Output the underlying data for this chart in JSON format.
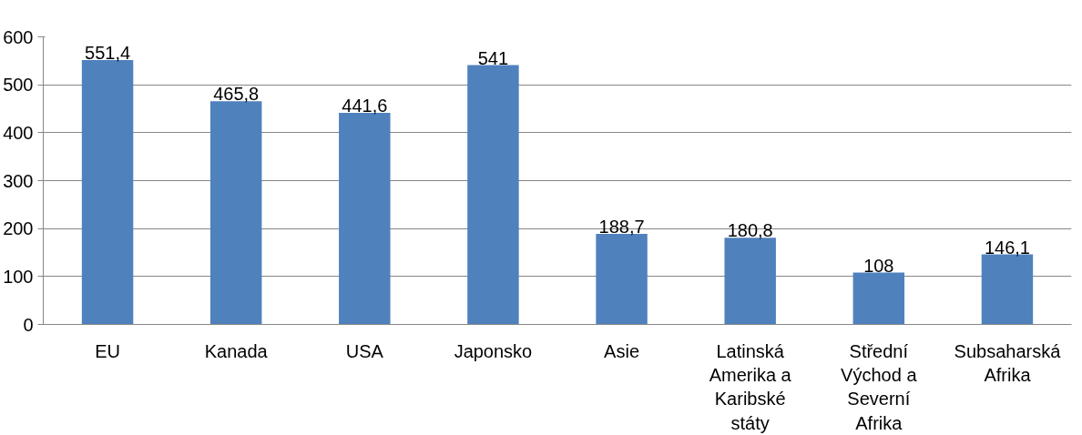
{
  "chart_data": {
    "type": "bar",
    "categories": [
      "EU",
      "Kanada",
      "USA",
      "Japonsko",
      "Asie",
      "Latinská Amerika a Karibské státy",
      "Střední Východ a Severní Afrika",
      "Subsaharská Afrika"
    ],
    "values": [
      551.4,
      465.8,
      441.6,
      541,
      188.7,
      180.8,
      108,
      146.1
    ],
    "value_labels": [
      "551,4",
      "465,8",
      "441,6",
      "541",
      "188,7",
      "180,8",
      "108",
      "146,1"
    ],
    "color": "#4f81bd",
    "ylim": [
      0,
      600
    ],
    "yticks": [
      0,
      100,
      200,
      300,
      400,
      500,
      600
    ],
    "grid": "y"
  }
}
